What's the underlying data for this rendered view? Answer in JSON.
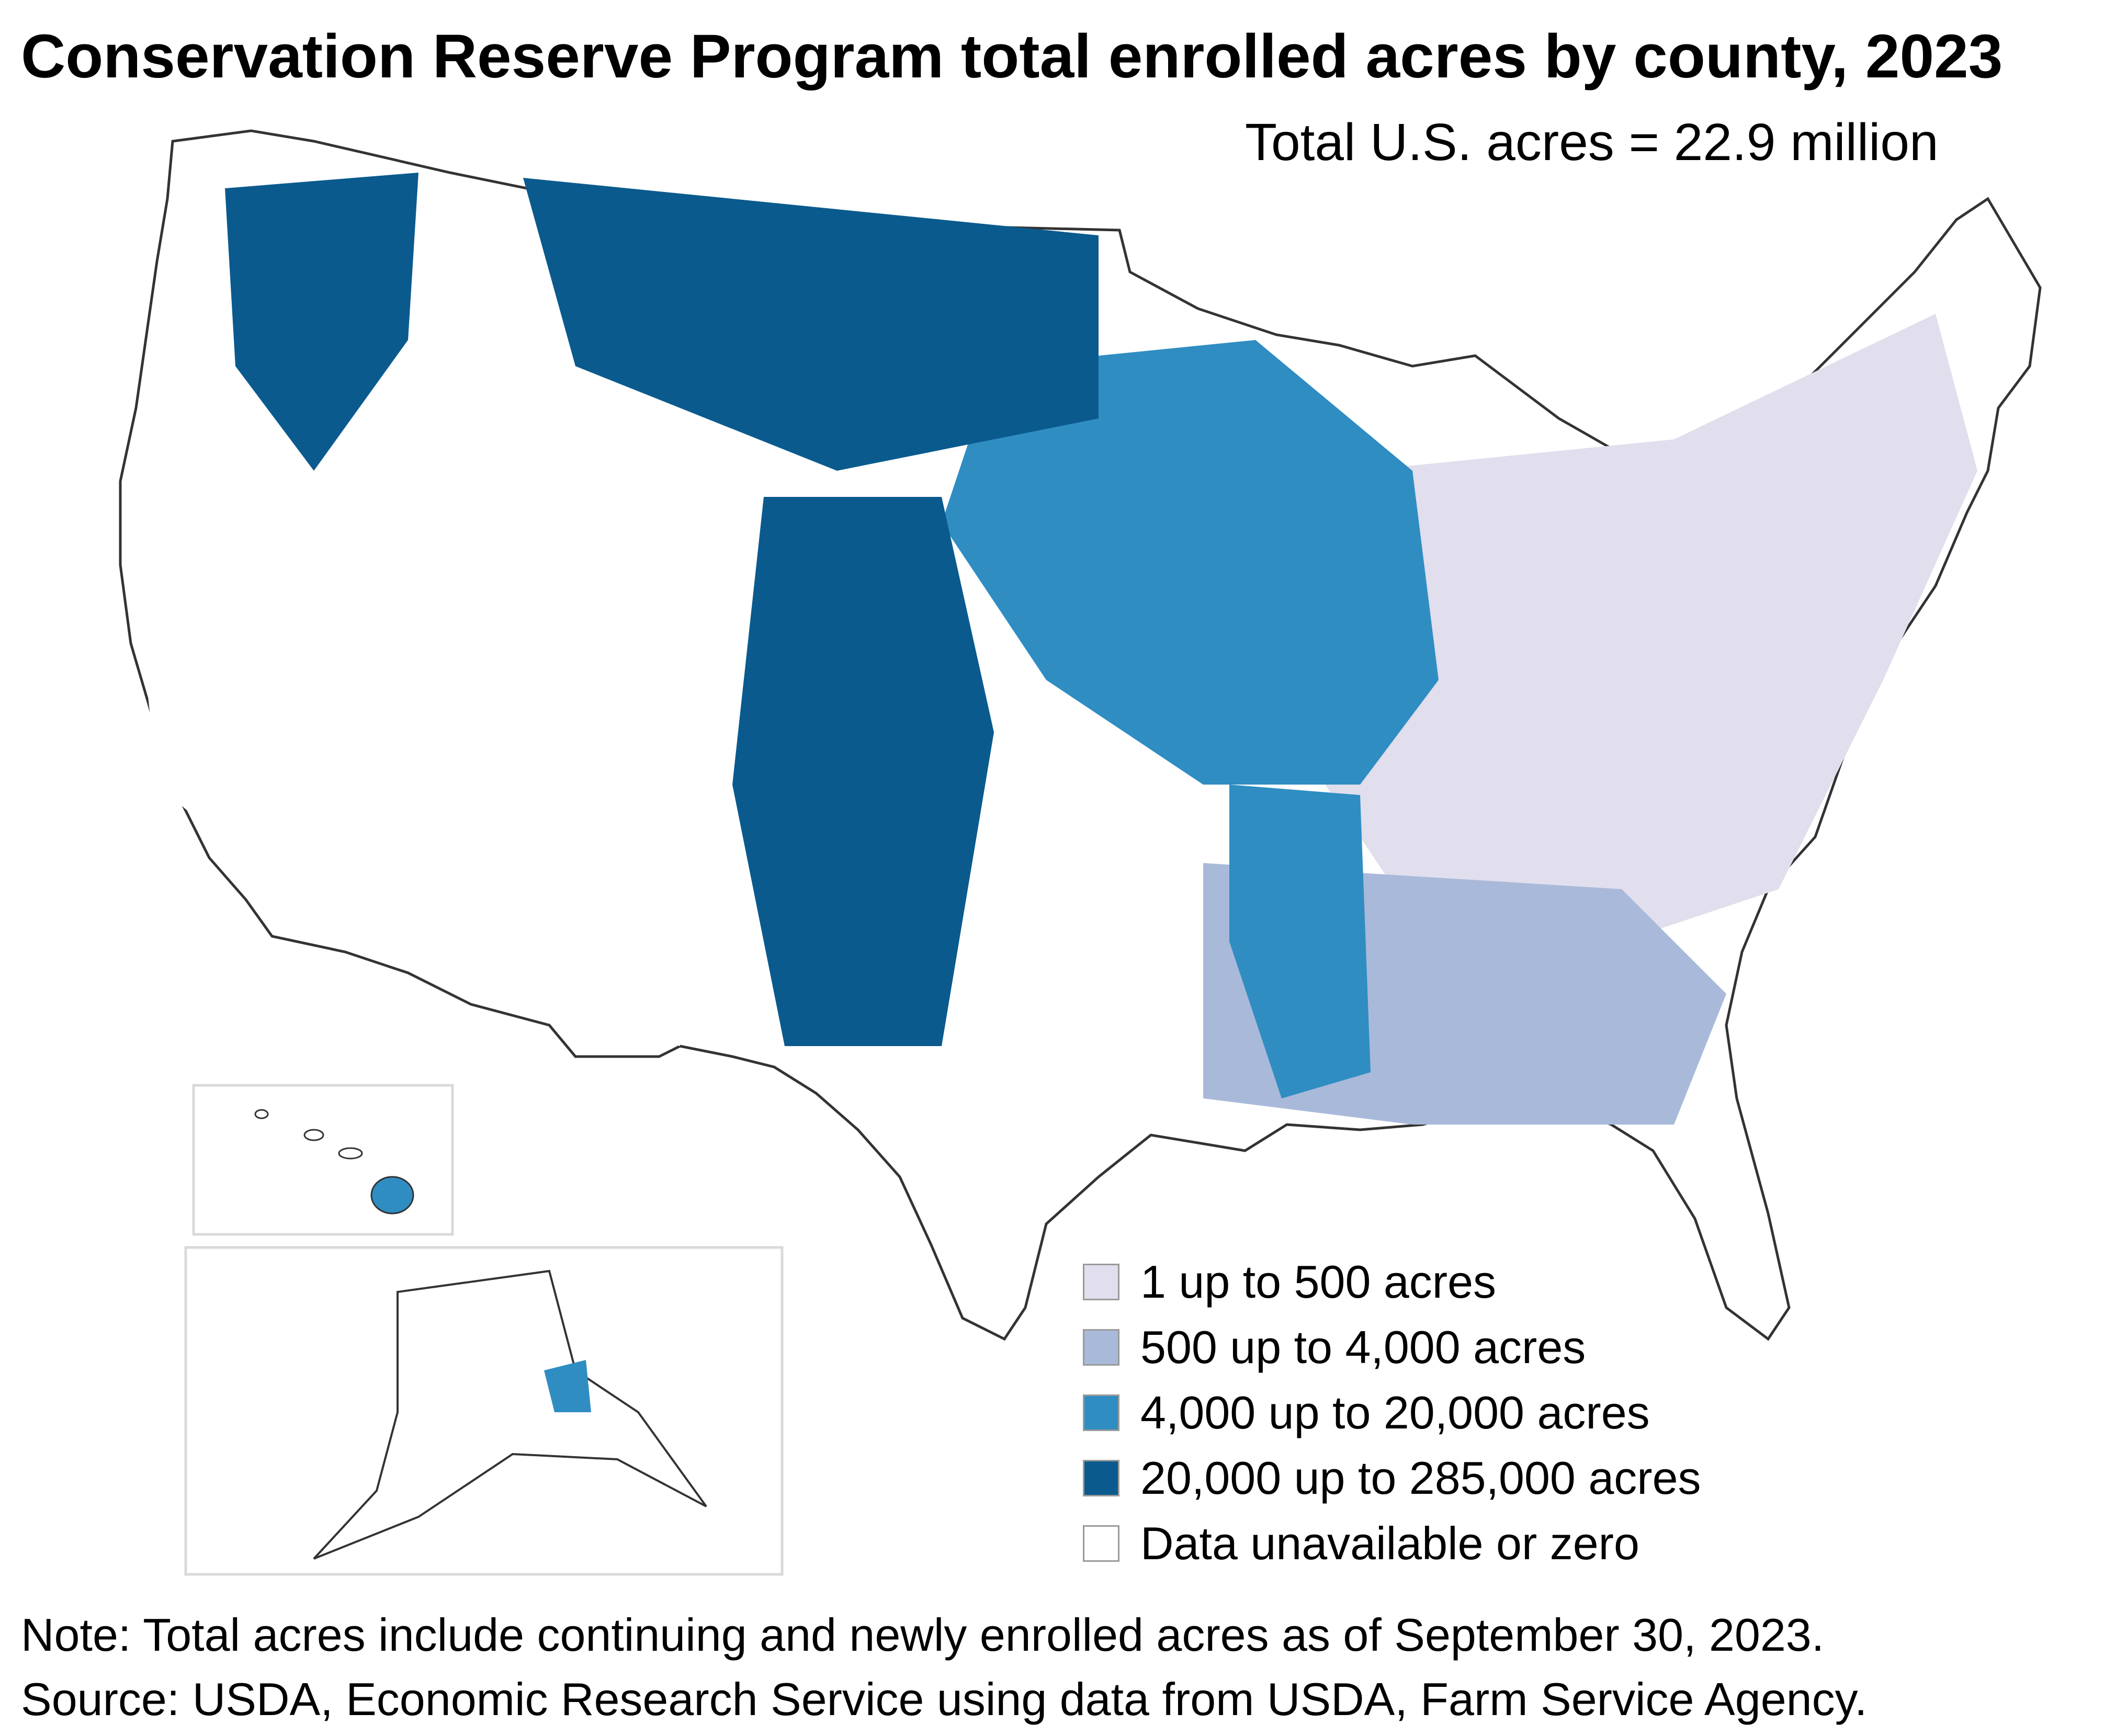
{
  "title": "Conservation Reserve Program total enrolled acres by county, 2023",
  "subtitle": "Total U.S. acres = 22.9 million",
  "legend": {
    "items": [
      {
        "label": "1 up to 500 acres",
        "color": "#e1deed"
      },
      {
        "label": "500 up to 4,000 acres",
        "color": "#a9b9d9"
      },
      {
        "label": "4,000 up to 20,000 acres",
        "color": "#2f8dc2"
      },
      {
        "label": "20,000 up to 285,000 acres",
        "color": "#0a5a8e"
      },
      {
        "label": "Data unavailable or zero",
        "color": "#ffffff"
      }
    ]
  },
  "note": "Note: Total acres include continuing and newly enrolled acres as of September 30, 2023.",
  "source": "Source: USDA, Economic Research Service using data from USDA, Farm Service Agency.",
  "map": {
    "regions": [
      {
        "name": "northern-plains",
        "class": "20,000 up to 285,000 acres"
      },
      {
        "name": "high-plains",
        "class": "20,000 up to 285,000 acres"
      },
      {
        "name": "palouse-northwest",
        "class": "20,000 up to 285,000 acres"
      },
      {
        "name": "corn-belt",
        "class": "4,000 up to 20,000 acres"
      },
      {
        "name": "mississippi-delta",
        "class": "4,000 up to 20,000 acres"
      },
      {
        "name": "east",
        "class": "1 up to 500 acres"
      },
      {
        "name": "southeast",
        "class": "500 up to 4,000 acres"
      },
      {
        "name": "west",
        "class": "Data unavailable or zero"
      }
    ]
  }
}
